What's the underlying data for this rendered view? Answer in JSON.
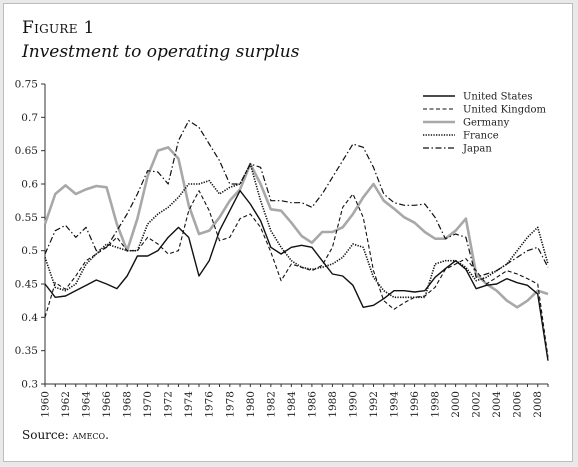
{
  "figure": {
    "label": "Figure 1",
    "title": "Investment to operating surplus",
    "source_prefix": "Source:",
    "source_name": "ameco."
  },
  "chart_data": {
    "type": "line",
    "title": "Investment to operating surplus",
    "xlabel": "",
    "ylabel": "",
    "xlim": [
      1960,
      2009
    ],
    "ylim": [
      0.3,
      0.75
    ],
    "yticks": [
      0.3,
      0.35,
      0.4,
      0.45,
      0.5,
      0.55,
      0.6,
      0.65,
      0.7,
      0.75
    ],
    "ytick_labels": [
      "0.3",
      "0.35",
      "0.4",
      "0.45",
      "0.5",
      "0.55",
      "0.6",
      "0.65",
      "0.7",
      "0.75"
    ],
    "xticks": [
      1960,
      1962,
      1964,
      1966,
      1968,
      1970,
      1972,
      1974,
      1976,
      1978,
      1980,
      1982,
      1984,
      1986,
      1988,
      1990,
      1992,
      1994,
      1996,
      1998,
      2000,
      2002,
      2004,
      2006,
      2008
    ],
    "xtick_labels": [
      "1960",
      "1962",
      "1964",
      "1966",
      "1968",
      "1970",
      "1972",
      "1974",
      "1976",
      "1978",
      "1980",
      "1982",
      "1984",
      "1986",
      "1988",
      "1990",
      "1992",
      "1994",
      "1996",
      "1998",
      "2000",
      "2002",
      "2004",
      "2006",
      "2008"
    ],
    "grid": false,
    "legend_position": "top-right",
    "x": [
      1960,
      1961,
      1962,
      1963,
      1964,
      1965,
      1966,
      1967,
      1968,
      1969,
      1970,
      1971,
      1972,
      1973,
      1974,
      1975,
      1976,
      1977,
      1978,
      1979,
      1980,
      1981,
      1982,
      1983,
      1984,
      1985,
      1986,
      1987,
      1988,
      1989,
      1990,
      1991,
      1992,
      1993,
      1994,
      1995,
      1996,
      1997,
      1998,
      1999,
      2000,
      2001,
      2002,
      2003,
      2004,
      2005,
      2006,
      2007,
      2008,
      2009
    ],
    "series": [
      {
        "name": "United States",
        "color": "#111111",
        "style": "solid",
        "values": [
          0.45,
          0.43,
          0.432,
          0.44,
          0.448,
          0.456,
          0.45,
          0.443,
          0.462,
          0.492,
          0.492,
          0.5,
          0.52,
          0.535,
          0.52,
          0.462,
          0.485,
          0.53,
          0.56,
          0.59,
          0.57,
          0.545,
          0.505,
          0.495,
          0.505,
          0.508,
          0.505,
          0.485,
          0.465,
          0.462,
          0.448,
          0.415,
          0.418,
          0.428,
          0.44,
          0.44,
          0.438,
          0.44,
          0.46,
          0.473,
          0.485,
          0.472,
          0.443,
          0.448,
          0.45,
          0.458,
          0.452,
          0.448,
          0.435,
          0.335
        ]
      },
      {
        "name": "United Kingdom",
        "color": "#111111",
        "style": "dashed",
        "values": [
          0.4,
          0.452,
          0.442,
          0.462,
          0.485,
          0.495,
          0.505,
          0.52,
          0.5,
          0.5,
          0.52,
          0.51,
          0.495,
          0.5,
          0.56,
          0.59,
          0.56,
          0.515,
          0.52,
          0.548,
          0.555,
          0.535,
          0.498,
          0.455,
          0.48,
          0.475,
          0.47,
          0.478,
          0.505,
          0.565,
          0.585,
          0.55,
          0.47,
          0.425,
          0.412,
          0.422,
          0.43,
          0.432,
          0.445,
          0.472,
          0.48,
          0.488,
          0.47,
          0.45,
          0.46,
          0.47,
          0.465,
          0.458,
          0.45,
          0.34
        ]
      },
      {
        "name": "Germany",
        "color": "#a8a8a8",
        "style": "solid-thick",
        "values": [
          0.54,
          0.585,
          0.598,
          0.585,
          0.592,
          0.597,
          0.595,
          0.54,
          0.5,
          0.548,
          0.612,
          0.65,
          0.655,
          0.638,
          0.568,
          0.525,
          0.53,
          0.55,
          0.575,
          0.592,
          0.63,
          0.6,
          0.562,
          0.56,
          0.542,
          0.522,
          0.512,
          0.528,
          0.528,
          0.535,
          0.555,
          0.58,
          0.6,
          0.575,
          0.563,
          0.55,
          0.542,
          0.528,
          0.518,
          0.518,
          0.53,
          0.548,
          0.465,
          0.45,
          0.44,
          0.425,
          0.415,
          0.425,
          0.44,
          0.435
        ]
      },
      {
        "name": "France",
        "color": "#111111",
        "style": "dotted",
        "values": [
          0.49,
          0.445,
          0.44,
          0.45,
          0.48,
          0.495,
          0.51,
          0.505,
          0.5,
          0.5,
          0.54,
          0.555,
          0.565,
          0.58,
          0.6,
          0.6,
          0.605,
          0.585,
          0.595,
          0.6,
          0.63,
          0.575,
          0.53,
          0.505,
          0.485,
          0.475,
          0.472,
          0.475,
          0.48,
          0.49,
          0.51,
          0.505,
          0.46,
          0.44,
          0.43,
          0.43,
          0.43,
          0.43,
          0.48,
          0.485,
          0.485,
          0.475,
          0.455,
          0.46,
          0.47,
          0.48,
          0.5,
          0.52,
          0.535,
          0.48
        ]
      },
      {
        "name": "Japan",
        "color": "#111111",
        "style": "dashdot",
        "values": [
          0.495,
          0.53,
          0.538,
          0.52,
          0.535,
          0.5,
          0.505,
          0.53,
          0.555,
          0.585,
          0.62,
          0.618,
          0.6,
          0.665,
          0.695,
          0.685,
          0.66,
          0.635,
          0.6,
          0.6,
          0.63,
          0.625,
          0.575,
          0.575,
          0.572,
          0.572,
          0.565,
          0.585,
          0.61,
          0.635,
          0.66,
          0.655,
          0.625,
          0.585,
          0.572,
          0.568,
          0.568,
          0.57,
          0.55,
          0.518,
          0.525,
          0.52,
          0.46,
          0.465,
          0.47,
          0.48,
          0.49,
          0.5,
          0.505,
          0.475
        ]
      }
    ]
  }
}
